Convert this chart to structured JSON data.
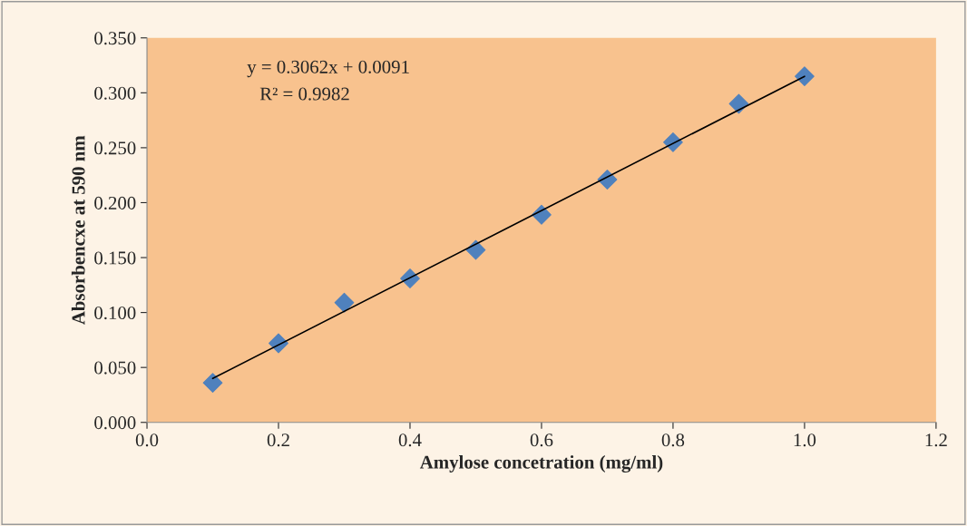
{
  "chart_data": {
    "type": "scatter",
    "xlabel": "Amylose concetration (mg/ml)",
    "ylabel": "Absorbencxe at 590 nm",
    "x": [
      0.1,
      0.2,
      0.3,
      0.4,
      0.5,
      0.6,
      0.7,
      0.8,
      0.9,
      1.0
    ],
    "series": [
      {
        "color": "#4f81bd",
        "marker": "diamond",
        "values": [
          0.036,
          0.072,
          0.109,
          0.131,
          0.157,
          0.189,
          0.221,
          0.255,
          0.29,
          0.315
        ]
      },
      {
        "type": "line",
        "color": "#000000",
        "marker": "none",
        "line_style": "solid",
        "x": [
          0.1,
          1.0
        ],
        "values": [
          0.04,
          0.315
        ]
      }
    ],
    "annotations": [
      "y = 0.3062x + 0.0091",
      "R² = 0.9982"
    ],
    "xlim": [
      0.0,
      1.2
    ],
    "xticks": [
      {
        "value": 0.0,
        "label": "0.0"
      },
      {
        "value": 0.2,
        "label": "0.2"
      },
      {
        "value": 0.4,
        "label": "0.4"
      },
      {
        "value": 0.6,
        "label": "0.6"
      },
      {
        "value": 0.8,
        "label": "0.8"
      },
      {
        "value": 1.0,
        "label": "1.0"
      },
      {
        "value": 1.2,
        "label": "1.2"
      }
    ],
    "ylim": [
      0.0,
      0.35
    ],
    "yticks": [
      {
        "value": 0.0,
        "label": "0.000"
      },
      {
        "value": 0.05,
        "label": "0.050"
      },
      {
        "value": 0.1,
        "label": "0.100"
      },
      {
        "value": 0.15,
        "label": "0.150"
      },
      {
        "value": 0.2,
        "label": "0.200"
      },
      {
        "value": 0.25,
        "label": "0.250"
      },
      {
        "value": 0.3,
        "label": "0.300"
      },
      {
        "value": 0.35,
        "label": "0.350"
      }
    ],
    "grid": false,
    "legend": false
  }
}
